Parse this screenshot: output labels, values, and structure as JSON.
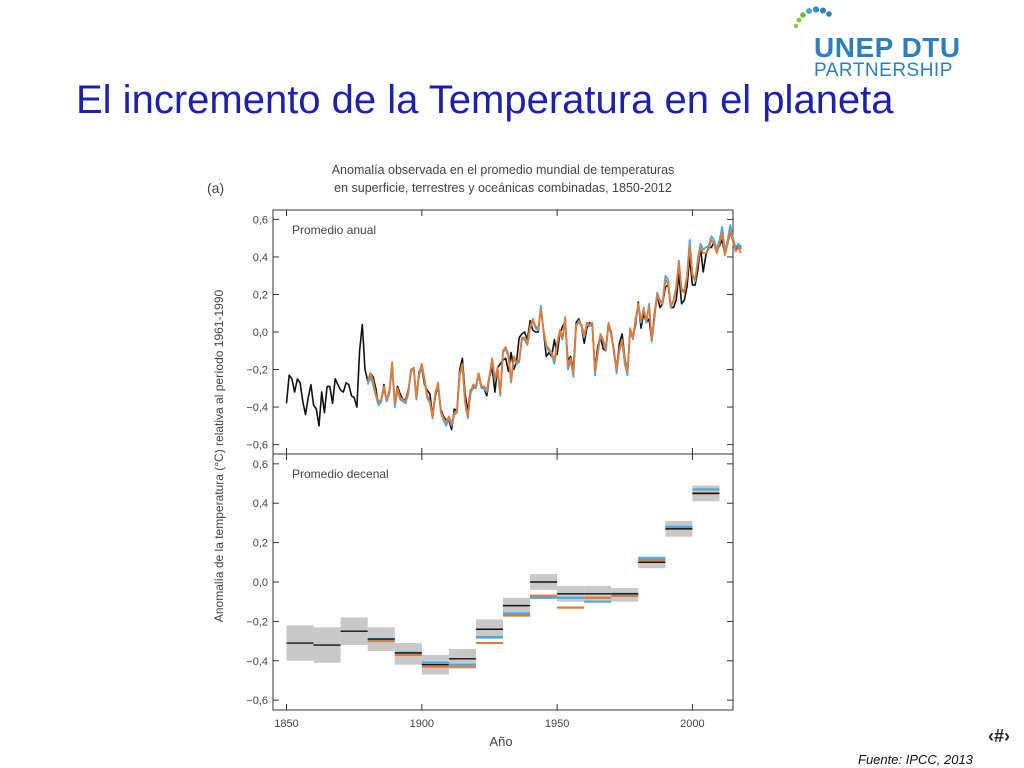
{
  "slide": {
    "title": "El incremento de la Temperatura en el planeta",
    "logo_line1": "UNEP DTU",
    "logo_line2": "PARTNERSHIP",
    "slide_number": "‹#›",
    "source": "Fuente: IPCC, 2013"
  },
  "colors": {
    "title": "#1f1fa8",
    "logo_blue": "#2e7fb8",
    "logo_green": "#8cc63f",
    "series_black": "#111111",
    "series_orange": "#e07b39",
    "series_blue": "#4aa8e0",
    "uncertainty_gray": "#c8c8c8"
  },
  "chart_data": {
    "type": "line",
    "panel_label": "(a)",
    "title_line1": "Anomalía observada en el promedio mundial de temperaturas",
    "title_line2": "en superficie, terrestres y oceánicas combinadas, 1850-2012",
    "ylabel": "Anomalía de la temperatura (°C) relativa al período 1961-1990",
    "xlabel": "Año",
    "xlim": [
      1845,
      2015
    ],
    "x_ticks": [
      "1850",
      "1900",
      "1950",
      "2000"
    ],
    "x_tick_values": [
      1850,
      1900,
      1950,
      2000
    ],
    "grid": false,
    "panels": [
      {
        "label": "Promedio anual",
        "ylim": [
          -0.65,
          0.65
        ],
        "y_ticks": [
          "0,6",
          "0,4",
          "0,2",
          "0,0",
          "−0,2",
          "−0,4",
          "−0,6"
        ],
        "y_tick_values": [
          0.6,
          0.4,
          0.2,
          0.0,
          -0.2,
          -0.4,
          -0.6
        ],
        "series": [
          {
            "color_key": "series_black",
            "x_start": 1850,
            "values": [
              -0.38,
              -0.23,
              -0.25,
              -0.32,
              -0.25,
              -0.27,
              -0.37,
              -0.44,
              -0.35,
              -0.28,
              -0.39,
              -0.41,
              -0.5,
              -0.32,
              -0.43,
              -0.29,
              -0.29,
              -0.38,
              -0.25,
              -0.28,
              -0.31,
              -0.32,
              -0.27,
              -0.28,
              -0.34,
              -0.35,
              -0.4,
              -0.1,
              0.04,
              -0.2,
              -0.26,
              -0.22,
              -0.24,
              -0.3,
              -0.39,
              -0.37,
              -0.28,
              -0.37,
              -0.31,
              -0.18,
              -0.38,
              -0.29,
              -0.33,
              -0.36,
              -0.36,
              -0.31,
              -0.21,
              -0.19,
              -0.35,
              -0.21,
              -0.19,
              -0.28,
              -0.31,
              -0.33,
              -0.45,
              -0.34,
              -0.29,
              -0.41,
              -0.45,
              -0.47,
              -0.47,
              -0.52,
              -0.41,
              -0.42,
              -0.2,
              -0.14,
              -0.33,
              -0.42,
              -0.31,
              -0.3,
              -0.29,
              -0.22,
              -0.29,
              -0.3,
              -0.34,
              -0.24,
              -0.19,
              -0.32,
              -0.19,
              -0.17,
              -0.15,
              -0.14,
              -0.21,
              -0.11,
              -0.2,
              -0.16,
              -0.03,
              -0.01,
              0.0,
              -0.04,
              0.06,
              0.01,
              0.0,
              0.0,
              0.13,
              0.0,
              -0.13,
              -0.11,
              -0.13,
              -0.04,
              -0.12,
              -0.01,
              0.03,
              0.05,
              -0.15,
              -0.13,
              -0.2,
              0.05,
              0.07,
              0.03,
              -0.06,
              0.02,
              0.05,
              0.03,
              -0.2,
              -0.08,
              -0.02,
              -0.09,
              -0.1,
              0.04,
              0.0,
              -0.11,
              -0.2,
              -0.06,
              -0.01,
              -0.14,
              -0.21,
              0.01,
              -0.03,
              0.04,
              0.16,
              0.02,
              0.1,
              0.05,
              0.07,
              -0.05,
              0.1,
              0.2,
              0.13,
              0.15,
              0.24,
              0.25,
              0.13,
              0.13,
              0.17,
              0.31,
              0.15,
              0.17,
              0.24,
              0.4,
              0.25,
              0.25,
              0.33,
              0.45,
              0.32,
              0.41,
              0.45,
              0.45,
              0.48,
              0.43,
              0.46,
              0.49,
              0.41,
              0.47,
              0.53,
              0.49,
              0.43,
              0.47,
              0.45
            ],
            "scope": "full"
          },
          {
            "color_key": "series_blue",
            "x_start": 1880,
            "values": [
              -0.28,
              -0.24,
              -0.28,
              -0.34,
              -0.39,
              -0.37,
              -0.3,
              -0.37,
              -0.33,
              -0.18,
              -0.4,
              -0.31,
              -0.36,
              -0.37,
              -0.38,
              -0.33,
              -0.21,
              -0.2,
              -0.36,
              -0.23,
              -0.18,
              -0.26,
              -0.35,
              -0.38,
              -0.46,
              -0.33,
              -0.28,
              -0.43,
              -0.47,
              -0.5,
              -0.46,
              -0.5,
              -0.44,
              -0.43,
              -0.23,
              -0.18,
              -0.38,
              -0.46,
              -0.33,
              -0.29,
              -0.3,
              -0.23,
              -0.3,
              -0.3,
              -0.32,
              -0.24,
              -0.15,
              -0.26,
              -0.2,
              -0.34,
              -0.11,
              -0.09,
              -0.13,
              -0.27,
              -0.14,
              -0.17,
              -0.16,
              -0.04,
              -0.04,
              -0.07,
              0.02,
              0.06,
              0.02,
              0.01,
              0.14,
              0.0,
              -0.08,
              -0.1,
              -0.12,
              -0.17,
              -0.07,
              0.0,
              -0.04,
              0.07,
              -0.2,
              -0.15,
              -0.24,
              0.03,
              0.06,
              0.03,
              -0.03,
              0.04,
              0.03,
              0.05,
              -0.23,
              -0.12,
              -0.02,
              -0.05,
              -0.1,
              0.04,
              -0.02,
              -0.1,
              -0.22,
              -0.1,
              -0.05,
              -0.17,
              -0.23,
              0.01,
              -0.04,
              0.06,
              0.14,
              0.05,
              0.13,
              0.05,
              0.15,
              -0.05,
              0.07,
              0.21,
              0.17,
              0.16,
              0.3,
              0.28,
              0.13,
              0.17,
              0.24,
              0.38,
              0.23,
              0.22,
              0.3,
              0.49,
              0.31,
              0.27,
              0.39,
              0.47,
              0.44,
              0.45,
              0.46,
              0.51,
              0.49,
              0.44,
              0.49,
              0.56,
              0.43,
              0.49,
              0.57,
              0.5,
              0.45,
              0.47,
              0.44
            ],
            "scope": "1880-2012"
          },
          {
            "color_key": "series_orange",
            "x_start": 1880,
            "values": [
              -0.26,
              -0.22,
              -0.26,
              -0.33,
              -0.37,
              -0.36,
              -0.29,
              -0.36,
              -0.31,
              -0.16,
              -0.38,
              -0.3,
              -0.35,
              -0.36,
              -0.37,
              -0.32,
              -0.2,
              -0.19,
              -0.35,
              -0.22,
              -0.17,
              -0.25,
              -0.34,
              -0.37,
              -0.45,
              -0.32,
              -0.27,
              -0.42,
              -0.46,
              -0.48,
              -0.45,
              -0.49,
              -0.43,
              -0.42,
              -0.22,
              -0.17,
              -0.37,
              -0.45,
              -0.32,
              -0.28,
              -0.29,
              -0.22,
              -0.29,
              -0.29,
              -0.31,
              -0.23,
              -0.14,
              -0.25,
              -0.19,
              -0.33,
              -0.1,
              -0.08,
              -0.12,
              -0.26,
              -0.13,
              -0.16,
              -0.15,
              -0.03,
              -0.03,
              -0.06,
              0.03,
              0.07,
              0.03,
              0.02,
              0.12,
              0.01,
              -0.07,
              -0.09,
              -0.11,
              -0.15,
              -0.06,
              0.01,
              -0.03,
              0.08,
              -0.18,
              -0.14,
              -0.22,
              0.04,
              0.05,
              0.04,
              -0.02,
              0.05,
              0.04,
              0.04,
              -0.21,
              -0.11,
              -0.01,
              -0.04,
              -0.09,
              0.05,
              -0.01,
              -0.09,
              -0.2,
              -0.09,
              -0.04,
              -0.15,
              -0.21,
              0.02,
              -0.03,
              0.07,
              0.15,
              0.06,
              0.12,
              0.06,
              0.14,
              -0.04,
              0.08,
              0.2,
              0.16,
              0.15,
              0.28,
              0.26,
              0.14,
              0.16,
              0.23,
              0.37,
              0.22,
              0.21,
              0.29,
              0.46,
              0.3,
              0.28,
              0.37,
              0.45,
              0.42,
              0.42,
              0.44,
              0.49,
              0.47,
              0.42,
              0.47,
              0.53,
              0.41,
              0.47,
              0.54,
              0.48,
              0.43,
              0.45,
              0.42
            ],
            "scope": "1880-2012"
          }
        ]
      },
      {
        "label": "Promedio decenal",
        "ylim": [
          -0.65,
          0.65
        ],
        "y_ticks": [
          "0,6",
          "0,4",
          "0,2",
          "0,0",
          "−0,2",
          "−0,4",
          "−0,6"
        ],
        "y_tick_values": [
          0.6,
          0.4,
          0.2,
          0.0,
          -0.2,
          -0.4,
          -0.6
        ],
        "decades": [
          {
            "start": 1850,
            "end": 1860,
            "black": -0.31,
            "unc": [
              -0.4,
              -0.22
            ]
          },
          {
            "start": 1860,
            "end": 1870,
            "black": -0.32,
            "unc": [
              -0.41,
              -0.23
            ]
          },
          {
            "start": 1870,
            "end": 1880,
            "black": -0.25,
            "unc": [
              -0.32,
              -0.18
            ]
          },
          {
            "start": 1880,
            "end": 1890,
            "black": -0.29,
            "orange": -0.3,
            "blue": -0.29,
            "unc": [
              -0.35,
              -0.23
            ]
          },
          {
            "start": 1890,
            "end": 1900,
            "black": -0.36,
            "orange": -0.37,
            "blue": -0.36,
            "unc": [
              -0.42,
              -0.31
            ]
          },
          {
            "start": 1900,
            "end": 1910,
            "black": -0.42,
            "orange": -0.43,
            "blue": -0.41,
            "unc": [
              -0.47,
              -0.37
            ]
          },
          {
            "start": 1910,
            "end": 1920,
            "black": -0.39,
            "orange": -0.43,
            "blue": -0.42,
            "unc": [
              -0.44,
              -0.34
            ]
          },
          {
            "start": 1920,
            "end": 1930,
            "black": -0.24,
            "orange": -0.31,
            "blue": -0.28,
            "unc": [
              -0.29,
              -0.19
            ]
          },
          {
            "start": 1930,
            "end": 1940,
            "black": -0.12,
            "orange": -0.17,
            "blue": -0.16,
            "unc": [
              -0.17,
              -0.08
            ]
          },
          {
            "start": 1940,
            "end": 1950,
            "black": 0.0,
            "orange": -0.07,
            "blue": -0.08,
            "unc": [
              -0.04,
              0.04
            ]
          },
          {
            "start": 1950,
            "end": 1960,
            "black": -0.06,
            "orange": -0.13,
            "blue": -0.08,
            "unc": [
              -0.1,
              -0.02
            ]
          },
          {
            "start": 1960,
            "end": 1970,
            "black": -0.06,
            "orange": -0.08,
            "blue": -0.1,
            "unc": [
              -0.1,
              -0.02
            ]
          },
          {
            "start": 1970,
            "end": 1980,
            "black": -0.06,
            "orange": -0.07,
            "blue": -0.06,
            "unc": [
              -0.1,
              -0.03
            ]
          },
          {
            "start": 1980,
            "end": 1990,
            "black": 0.1,
            "orange": 0.11,
            "blue": 0.12,
            "unc": [
              0.07,
              0.13
            ]
          },
          {
            "start": 1990,
            "end": 2000,
            "black": 0.27,
            "orange": 0.27,
            "blue": 0.28,
            "unc": [
              0.23,
              0.31
            ]
          },
          {
            "start": 2000,
            "end": 2010,
            "black": 0.45,
            "orange": 0.45,
            "blue": 0.47,
            "unc": [
              0.41,
              0.49
            ]
          }
        ]
      }
    ]
  }
}
